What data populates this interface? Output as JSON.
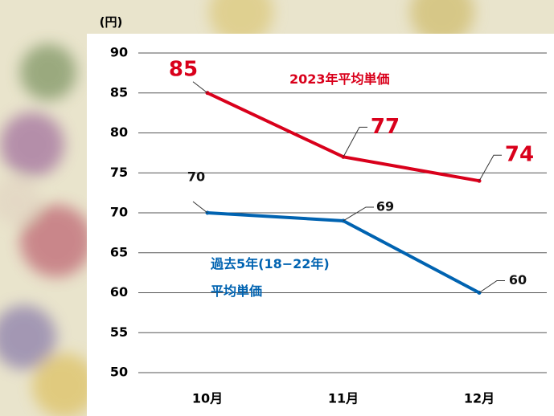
{
  "chart_data": {
    "type": "line",
    "y_unit": "(円)",
    "categories": [
      "10月",
      "11月",
      "12月"
    ],
    "series": [
      {
        "name": "2023年平均単価",
        "color": "#d9001b",
        "values": [
          85,
          77,
          74
        ]
      },
      {
        "name": "過去5年(18−22年)\n平均単価",
        "color": "#0063b1",
        "values": [
          70,
          69,
          60
        ]
      }
    ],
    "ylim": [
      50,
      90
    ],
    "yticks": [
      50,
      55,
      60,
      65,
      70,
      75,
      80,
      85,
      90
    ],
    "grid": true
  }
}
